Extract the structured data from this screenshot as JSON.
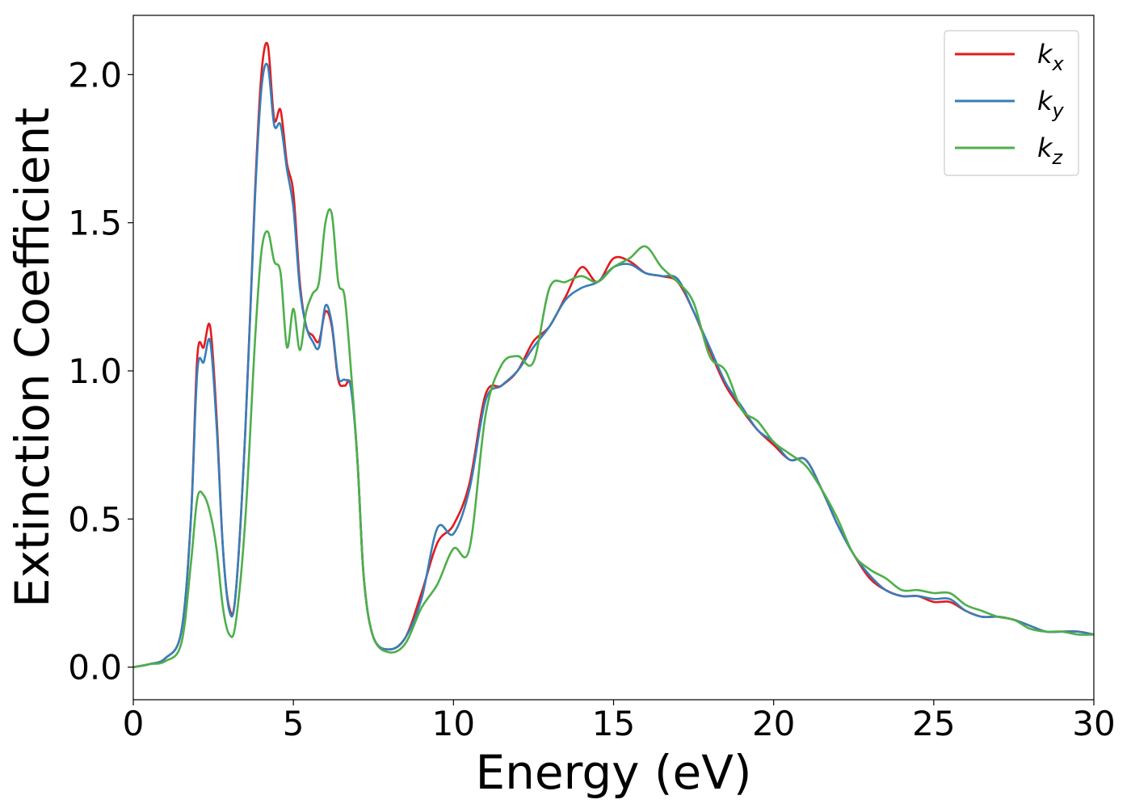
{
  "chart_data": {
    "type": "line",
    "xlabel": "Energy (eV)",
    "ylabel": "Extinction Coefficient",
    "xlim": [
      0,
      30
    ],
    "ylim": [
      -0.11,
      2.2
    ],
    "xticks": [
      0,
      5,
      10,
      15,
      20,
      25,
      30
    ],
    "xtick_labels": [
      "0",
      "5",
      "10",
      "15",
      "20",
      "25",
      "30"
    ],
    "yticks": [
      0.0,
      0.5,
      1.0,
      1.5,
      2.0
    ],
    "ytick_labels": [
      "0.0",
      "0.5",
      "1.0",
      "1.5",
      "2.0"
    ],
    "grid": false,
    "legend_position": "top-right",
    "series": [
      {
        "name": "k",
        "subscript": "x",
        "color": "#e41a1c",
        "x": [
          0,
          0.5,
          1,
          1.5,
          1.8,
          2.0,
          2.2,
          2.4,
          2.6,
          2.8,
          3.0,
          3.2,
          3.5,
          3.8,
          4.0,
          4.2,
          4.4,
          4.6,
          4.8,
          5.0,
          5.2,
          5.4,
          5.6,
          5.8,
          6.0,
          6.2,
          6.4,
          6.6,
          6.8,
          7.0,
          7.2,
          7.5,
          8.0,
          8.5,
          9.0,
          9.5,
          10.0,
          10.5,
          11.0,
          11.5,
          12.0,
          12.5,
          13.0,
          13.5,
          14.0,
          14.5,
          15.0,
          15.5,
          16.0,
          16.5,
          17.0,
          17.5,
          18.0,
          18.5,
          19.0,
          19.5,
          20.0,
          20.5,
          21.0,
          21.5,
          22.0,
          22.5,
          23.0,
          23.5,
          24.0,
          24.5,
          25.0,
          25.5,
          26.0,
          26.5,
          27.0,
          27.5,
          28.0,
          28.5,
          29.0,
          29.5,
          30.0
        ],
        "values": [
          0,
          0.01,
          0.03,
          0.12,
          0.5,
          1.05,
          1.08,
          1.15,
          0.85,
          0.4,
          0.2,
          0.25,
          0.8,
          1.6,
          2.0,
          2.1,
          1.85,
          1.88,
          1.7,
          1.6,
          1.3,
          1.15,
          1.12,
          1.1,
          1.2,
          1.15,
          0.97,
          0.95,
          0.95,
          0.7,
          0.3,
          0.1,
          0.06,
          0.1,
          0.25,
          0.42,
          0.48,
          0.62,
          0.92,
          0.95,
          1.0,
          1.1,
          1.15,
          1.25,
          1.35,
          1.3,
          1.38,
          1.37,
          1.33,
          1.32,
          1.3,
          1.2,
          1.07,
          0.95,
          0.87,
          0.8,
          0.75,
          0.7,
          0.7,
          0.6,
          0.48,
          0.38,
          0.3,
          0.26,
          0.24,
          0.24,
          0.22,
          0.22,
          0.19,
          0.17,
          0.17,
          0.16,
          0.14,
          0.12,
          0.12,
          0.12,
          0.11
        ]
      },
      {
        "name": "k",
        "subscript": "y",
        "color": "#377eb8",
        "x": [
          0,
          0.5,
          1,
          1.5,
          1.8,
          2.0,
          2.2,
          2.4,
          2.6,
          2.8,
          3.0,
          3.2,
          3.5,
          3.8,
          4.0,
          4.2,
          4.4,
          4.6,
          4.8,
          5.0,
          5.2,
          5.4,
          5.6,
          5.8,
          6.0,
          6.2,
          6.4,
          6.6,
          6.8,
          7.0,
          7.2,
          7.5,
          8.0,
          8.5,
          9.0,
          9.5,
          10.0,
          10.5,
          11.0,
          11.5,
          12.0,
          12.5,
          13.0,
          13.5,
          14.0,
          14.5,
          15.0,
          15.5,
          16.0,
          16.5,
          17.0,
          17.5,
          18.0,
          18.5,
          19.0,
          19.5,
          20.0,
          20.5,
          21.0,
          21.5,
          22.0,
          22.5,
          23.0,
          23.5,
          24.0,
          24.5,
          25.0,
          25.5,
          26.0,
          26.5,
          27.0,
          27.5,
          28.0,
          28.5,
          29.0,
          29.5,
          30.0
        ],
        "values": [
          0,
          0.01,
          0.03,
          0.12,
          0.5,
          1.0,
          1.03,
          1.1,
          0.82,
          0.4,
          0.19,
          0.25,
          0.8,
          1.58,
          1.95,
          2.03,
          1.83,
          1.83,
          1.68,
          1.55,
          1.28,
          1.15,
          1.1,
          1.08,
          1.22,
          1.16,
          0.98,
          0.97,
          0.94,
          0.7,
          0.3,
          0.1,
          0.06,
          0.1,
          0.23,
          0.47,
          0.45,
          0.6,
          0.9,
          0.95,
          1.0,
          1.08,
          1.15,
          1.24,
          1.28,
          1.3,
          1.35,
          1.36,
          1.33,
          1.32,
          1.31,
          1.2,
          1.08,
          0.96,
          0.88,
          0.8,
          0.76,
          0.7,
          0.7,
          0.6,
          0.48,
          0.38,
          0.31,
          0.26,
          0.24,
          0.24,
          0.23,
          0.23,
          0.19,
          0.17,
          0.17,
          0.16,
          0.14,
          0.12,
          0.12,
          0.12,
          0.11
        ]
      },
      {
        "name": "k",
        "subscript": "z",
        "color": "#4daf4a",
        "x": [
          0,
          0.5,
          1,
          1.5,
          1.8,
          2.0,
          2.2,
          2.4,
          2.6,
          2.8,
          3.0,
          3.2,
          3.5,
          3.8,
          4.0,
          4.2,
          4.4,
          4.6,
          4.8,
          5.0,
          5.2,
          5.4,
          5.6,
          5.8,
          6.0,
          6.2,
          6.4,
          6.6,
          6.8,
          7.0,
          7.2,
          7.5,
          8.0,
          8.5,
          9.0,
          9.5,
          10.0,
          10.5,
          11.0,
          11.5,
          12.0,
          12.5,
          13.0,
          13.5,
          14.0,
          14.5,
          15.0,
          15.5,
          16.0,
          16.5,
          17.0,
          17.5,
          18.0,
          18.5,
          19.0,
          19.5,
          20.0,
          20.5,
          21.0,
          21.5,
          22.0,
          22.5,
          23.0,
          23.5,
          24.0,
          24.5,
          25.0,
          25.5,
          26.0,
          26.5,
          27.0,
          27.5,
          28.0,
          28.5,
          29.0,
          29.5,
          30.0
        ],
        "values": [
          0,
          0.01,
          0.02,
          0.08,
          0.35,
          0.57,
          0.58,
          0.52,
          0.4,
          0.2,
          0.11,
          0.15,
          0.5,
          1.1,
          1.4,
          1.47,
          1.37,
          1.33,
          1.08,
          1.21,
          1.07,
          1.2,
          1.26,
          1.3,
          1.5,
          1.53,
          1.3,
          1.25,
          1.0,
          0.7,
          0.3,
          0.1,
          0.05,
          0.08,
          0.2,
          0.28,
          0.4,
          0.4,
          0.85,
          1.02,
          1.05,
          1.03,
          1.28,
          1.3,
          1.32,
          1.3,
          1.35,
          1.38,
          1.42,
          1.35,
          1.3,
          1.23,
          1.05,
          1.0,
          0.87,
          0.83,
          0.76,
          0.72,
          0.68,
          0.6,
          0.5,
          0.38,
          0.33,
          0.3,
          0.26,
          0.26,
          0.25,
          0.25,
          0.21,
          0.19,
          0.17,
          0.16,
          0.13,
          0.12,
          0.12,
          0.11,
          0.11
        ]
      }
    ]
  }
}
